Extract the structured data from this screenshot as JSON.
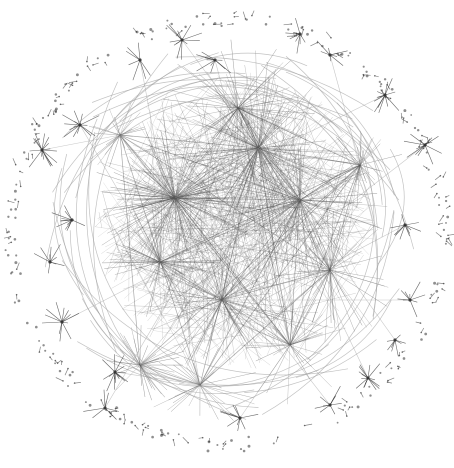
{
  "diagram": {
    "type": "network-graph",
    "labels_shown": false,
    "colors": {
      "background": "#ffffff",
      "edge": "#555555",
      "edge_light": "#9a9a9a",
      "node": "#333333"
    }
  }
}
